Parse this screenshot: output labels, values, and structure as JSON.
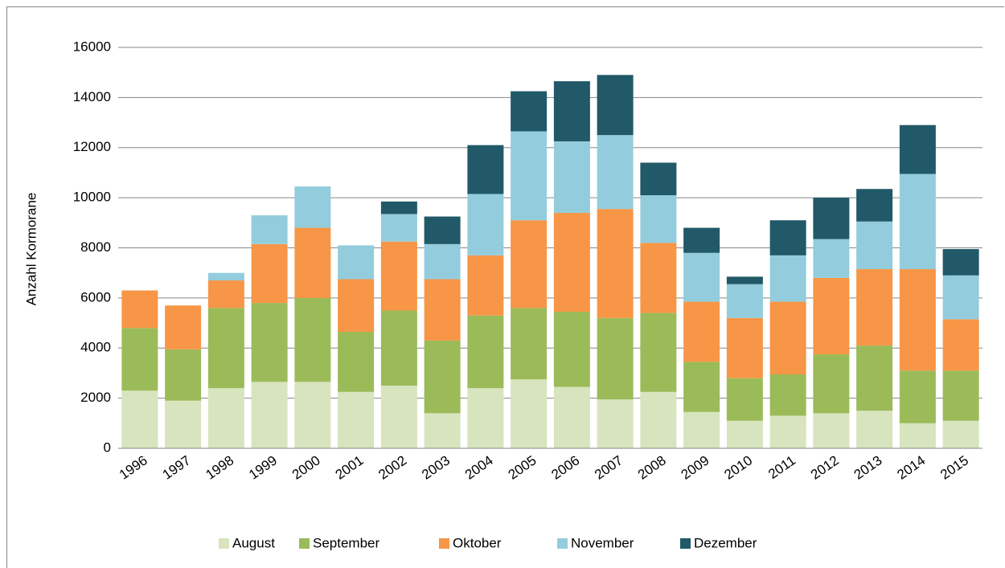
{
  "chart_data": {
    "type": "stacked_bar",
    "y_label": "Anzahl Kormorane",
    "categories": [
      "1996",
      "1997",
      "1998",
      "1999",
      "2000",
      "2001",
      "2002",
      "2003",
      "2004",
      "2005",
      "2006",
      "2007",
      "2008",
      "2009",
      "2010",
      "2011",
      "2012",
      "2013",
      "2014",
      "2015"
    ],
    "series": [
      {
        "name": "August",
        "color": "#d7e4bd",
        "values": [
          2300,
          1900,
          2400,
          2650,
          2650,
          2250,
          2500,
          1400,
          2400,
          2750,
          2450,
          1950,
          2250,
          1450,
          1100,
          1300,
          1400,
          1500,
          1000,
          1100
        ]
      },
      {
        "name": "September",
        "color": "#9bbb59",
        "values": [
          2500,
          2050,
          3200,
          3150,
          3350,
          2400,
          3000,
          2900,
          2900,
          2850,
          3000,
          3250,
          3150,
          2000,
          1700,
          1650,
          2350,
          2600,
          2100,
          2000
        ]
      },
      {
        "name": "Oktober",
        "color": "#f79646",
        "values": [
          1500,
          1750,
          1100,
          2350,
          2800,
          2100,
          2750,
          2450,
          2400,
          3500,
          3950,
          4350,
          2800,
          2400,
          2400,
          2900,
          3050,
          3050,
          4050,
          2050
        ]
      },
      {
        "name": "November",
        "color": "#93cddd",
        "values": [
          null,
          null,
          300,
          1150,
          1650,
          1350,
          1100,
          1400,
          2450,
          3550,
          2850,
          2950,
          1900,
          1950,
          1350,
          1850,
          1550,
          1900,
          3800,
          1750
        ]
      },
      {
        "name": "Dezember",
        "color": "#215968",
        "values": [
          null,
          null,
          null,
          null,
          null,
          null,
          500,
          1100,
          1950,
          1600,
          2400,
          2400,
          1300,
          1000,
          300,
          1400,
          1650,
          1300,
          1950,
          1050
        ]
      }
    ],
    "ylim": [
      0,
      16000
    ],
    "yticks": [
      0,
      2000,
      4000,
      6000,
      8000,
      10000,
      12000,
      14000,
      16000
    ],
    "grid": true,
    "legend": "bottom"
  }
}
